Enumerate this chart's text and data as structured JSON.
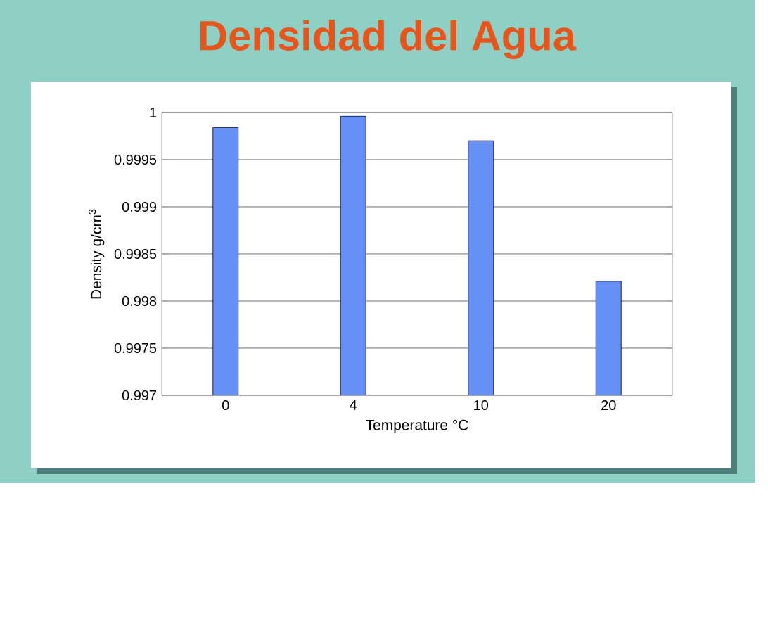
{
  "chart_data": {
    "type": "bar",
    "title": "Densidad del Agua",
    "xlabel": "Temperature °C",
    "ylabel": "Density g/cm$^{3}$",
    "categories": [
      "0",
      "4",
      "10",
      "20"
    ],
    "values": [
      0.99984,
      0.99996,
      0.9997,
      0.99821
    ],
    "color": "#6690f5",
    "ylim": [
      0.997,
      1
    ],
    "yticks": [
      0.997,
      0.9975,
      0.998,
      0.9985,
      0.999,
      0.9995,
      1
    ],
    "grid": "y"
  }
}
